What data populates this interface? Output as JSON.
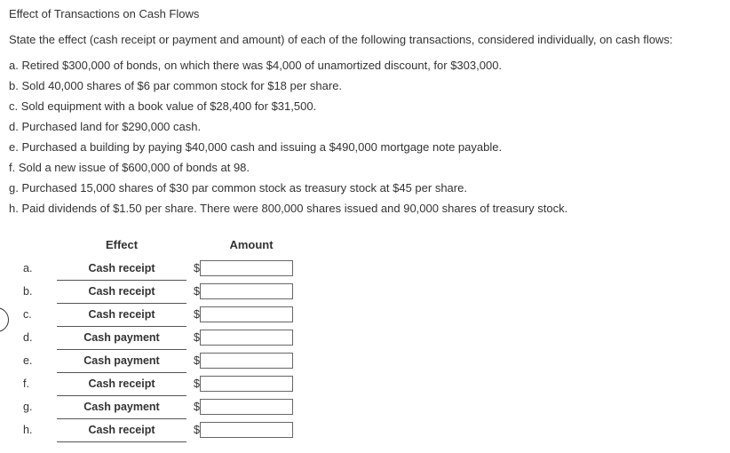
{
  "title": "Effect of Transactions on Cash Flows",
  "intro": "State the effect (cash receipt or payment and amount) of each of the following transactions, considered individually, on cash flows:",
  "transactions": {
    "a": "a. Retired $300,000 of bonds, on which there was $4,000 of unamortized discount, for $303,000.",
    "b": "b. Sold 40,000 shares of $6 par common stock for $18 per share.",
    "c": "c. Sold equipment with a book value of $28,400 for $31,500.",
    "d": "d. Purchased land for $290,000 cash.",
    "e": "e. Purchased a building by paying $40,000 cash and issuing a $490,000 mortgage note payable.",
    "f": "f. Sold a new issue of $600,000 of bonds at 98.",
    "g": "g. Purchased 15,000 shares of $30 par common stock as treasury stock at $45 per share.",
    "h": "h. Paid dividends of $1.50 per share. There were 800,000 shares issued and 90,000 shares of treasury stock."
  },
  "headers": {
    "effect": "Effect",
    "amount": "Amount"
  },
  "rows": {
    "a": {
      "label": "a.",
      "effect": "Cash receipt",
      "dollar": "$",
      "amount": ""
    },
    "b": {
      "label": "b.",
      "effect": "Cash receipt",
      "dollar": "$",
      "amount": ""
    },
    "c": {
      "label": "c.",
      "effect": "Cash receipt",
      "dollar": "$",
      "amount": ""
    },
    "d": {
      "label": "d.",
      "effect": "Cash payment",
      "dollar": "$",
      "amount": ""
    },
    "e": {
      "label": "e.",
      "effect": "Cash payment",
      "dollar": "$",
      "amount": ""
    },
    "f": {
      "label": "f.",
      "effect": "Cash receipt",
      "dollar": "$",
      "amount": ""
    },
    "g": {
      "label": "g.",
      "effect": "Cash payment",
      "dollar": "$",
      "amount": ""
    },
    "h": {
      "label": "h.",
      "effect": "Cash receipt",
      "dollar": "$",
      "amount": ""
    }
  }
}
